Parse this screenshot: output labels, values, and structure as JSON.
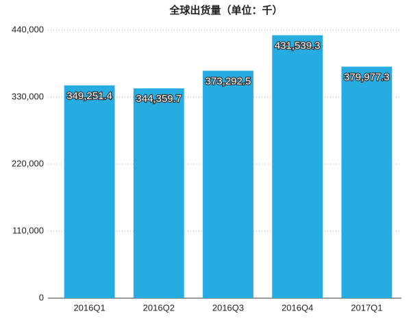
{
  "chart_data": {
    "type": "bar",
    "title": "全球出货量（单位：千）",
    "categories": [
      "2016Q1",
      "2016Q2",
      "2016Q3",
      "2016Q4",
      "2017Q1"
    ],
    "values": [
      349251.4,
      344359.7,
      373292.5,
      431539.3,
      379977.3
    ],
    "value_labels": [
      "349,251.4",
      "344,359.7",
      "373,292.5",
      "431,539.3",
      "379,977.3"
    ],
    "color": "#27ace2",
    "ylim": [
      0,
      440000
    ],
    "yticks": [
      0,
      {
        "value": 110000,
        "label": "110,000"
      },
      {
        "value": 220000,
        "label": "220,000"
      },
      {
        "value": 330000,
        "label": "330,000"
      },
      {
        "value": 440000,
        "label": "440,000"
      }
    ],
    "grid": true
  }
}
